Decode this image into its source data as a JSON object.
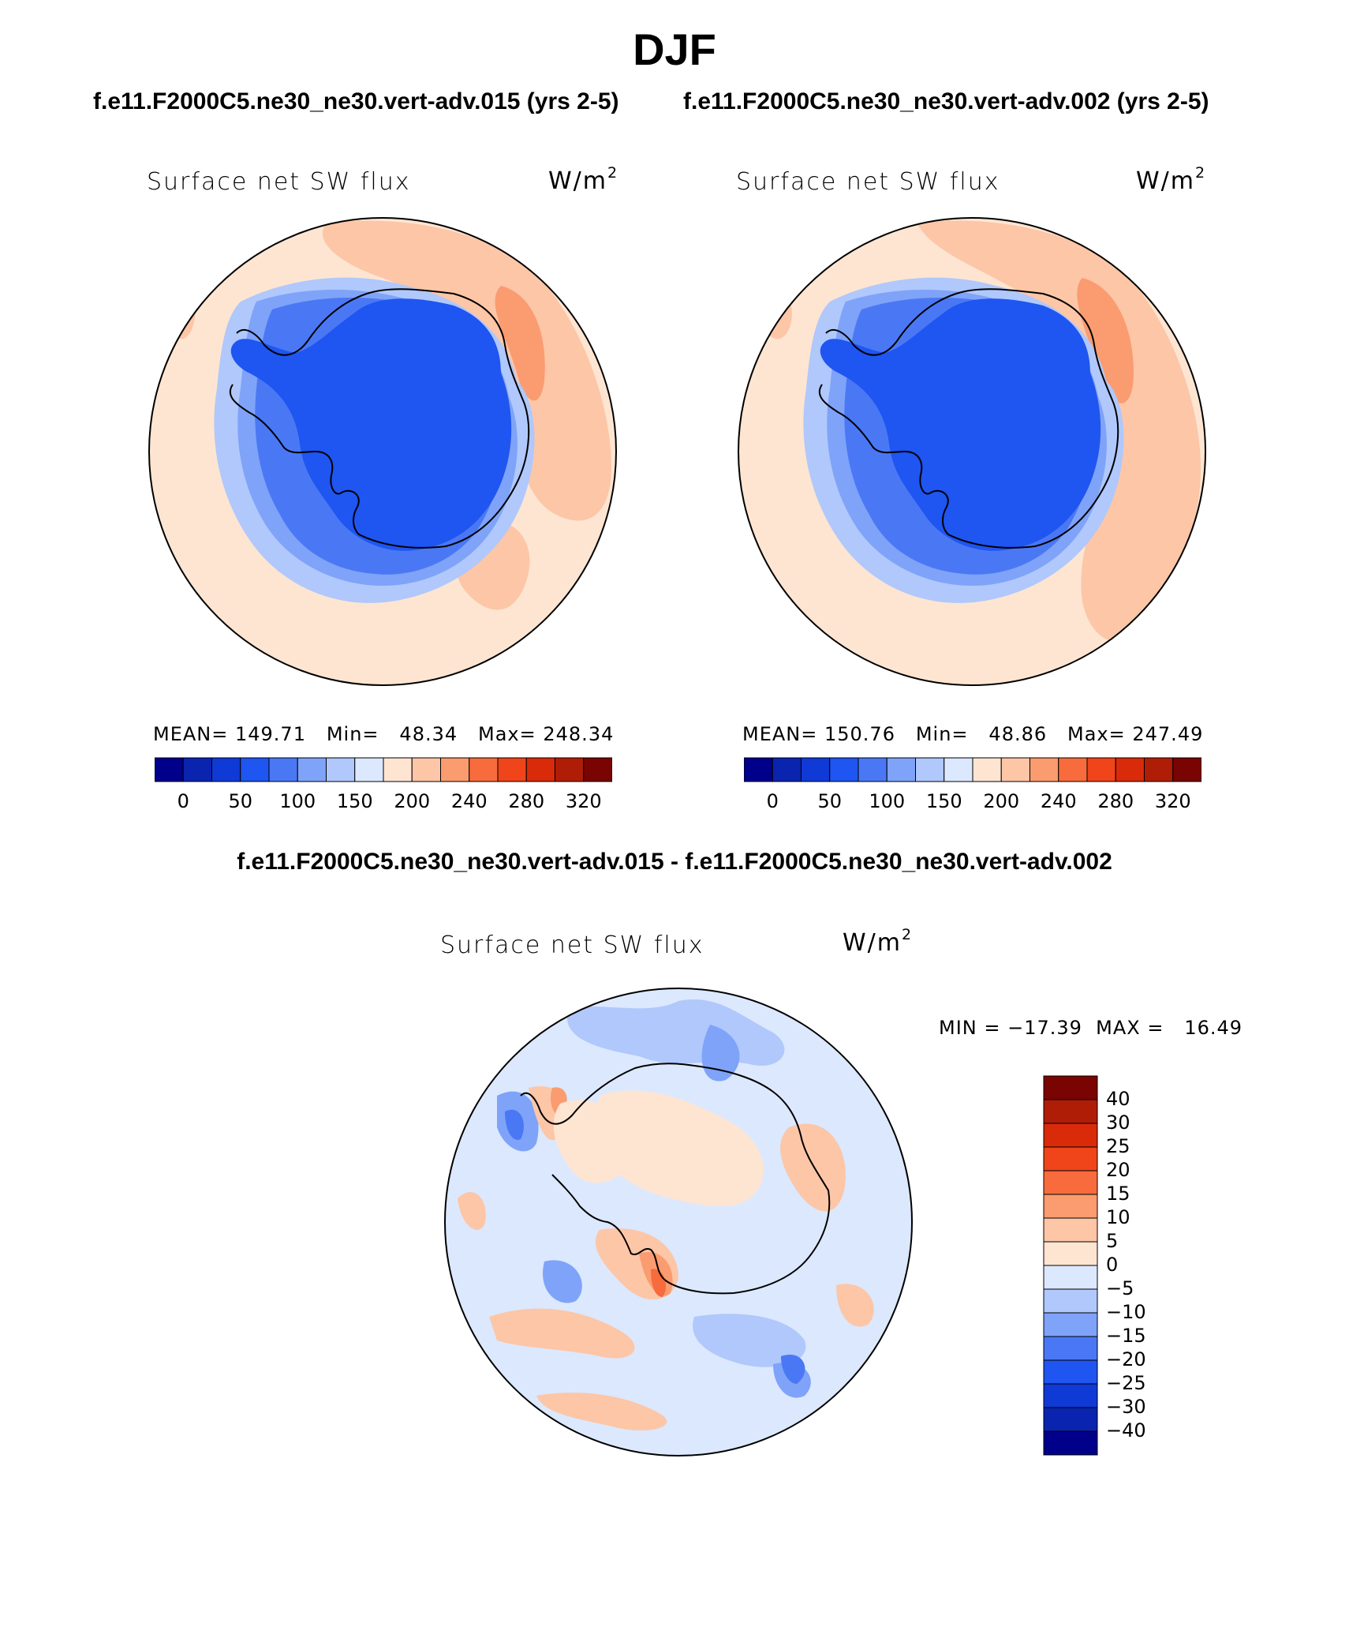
{
  "figure": {
    "title": "DJF",
    "case_a_title": "f.e11.F2000C5.ne30_ne30.vert-adv.015 (yrs 2-5)",
    "case_b_title": "f.e11.F2000C5.ne30_ne30.vert-adv.002 (yrs 2-5)",
    "diff_title": "f.e11.F2000C5.ne30_ne30.vert-adv.015 - f.e11.F2000C5.ne30_ne30.vert-adv.002"
  },
  "panels": {
    "a": {
      "label": "Surface net SW flux",
      "units_base": "W/m",
      "units_exp": "2",
      "stats": "MEAN= 149.71   Min=   48.34   Max= 248.34"
    },
    "b": {
      "label": "Surface net SW flux",
      "units_base": "W/m",
      "units_exp": "2",
      "stats": "MEAN= 150.76   Min=   48.86   Max= 247.49"
    },
    "diff": {
      "label": "Surface net SW flux",
      "units_base": "W/m",
      "units_exp": "2",
      "stats": "MIN = −17.39  MAX =   16.49"
    }
  },
  "colorbar_abs": {
    "tick_labels": [
      "0",
      "50",
      "100",
      "150",
      "200",
      "240",
      "280",
      "320"
    ],
    "colors": [
      "#00008a",
      "#0a24b0",
      "#0f3ad6",
      "#1f55f0",
      "#4a78f5",
      "#7fa3f8",
      "#b0c8fb",
      "#dce8fd",
      "#fde5d2",
      "#fcc6a7",
      "#fa9c70",
      "#f76b3c",
      "#f0441a",
      "#d92a0a",
      "#b01d06",
      "#7a0402"
    ]
  },
  "colorbar_diff": {
    "tick_labels": [
      "40",
      "30",
      "25",
      "20",
      "15",
      "10",
      "5",
      "0",
      "−5",
      "−10",
      "−15",
      "−20",
      "−25",
      "−30",
      "−40"
    ],
    "colors": [
      "#7a0402",
      "#b01d06",
      "#d92a0a",
      "#f0441a",
      "#f76b3c",
      "#fa9c70",
      "#fcc6a7",
      "#fde5d2",
      "#dce8fd",
      "#b0c8fb",
      "#7fa3f8",
      "#4a78f5",
      "#1f55f0",
      "#0f3ad6",
      "#0a24b0",
      "#00008a"
    ]
  }
}
